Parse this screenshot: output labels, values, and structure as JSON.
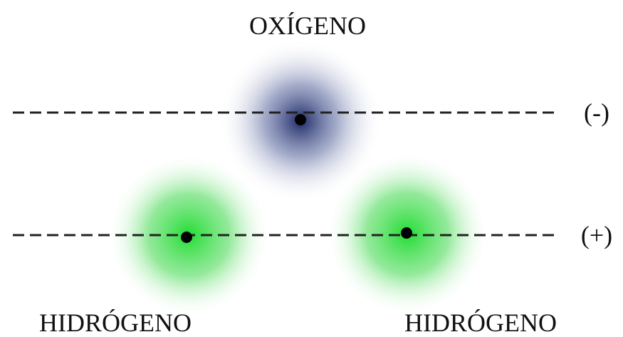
{
  "nodes": [
    {
      "label": "OXÍGENO"
    },
    {
      "label": "HIDRÓGENO"
    },
    {
      "label": "HIDRÓGENO"
    }
  ],
  "charges": [
    {
      "label": "(-)"
    },
    {
      "label": "(+)"
    }
  ]
}
